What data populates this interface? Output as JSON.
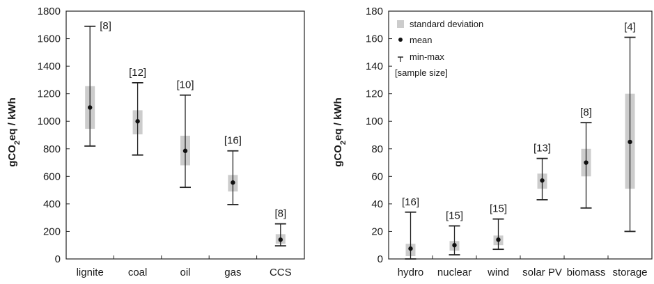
{
  "colors": {
    "sd_box": "#cccccc",
    "whisker": "#222222",
    "mean": "#111111",
    "frame": "#222222"
  },
  "chart_data": [
    {
      "type": "box",
      "ylabel_main": "gCO",
      "ylabel_sub": "2",
      "ylabel_rest": "eq / kWh",
      "ylim": [
        0,
        1800
      ],
      "yticks": [
        0,
        200,
        400,
        600,
        800,
        1000,
        1200,
        1400,
        1600,
        1800
      ],
      "grid": false,
      "categories": [
        "lignite",
        "coal",
        "oil",
        "gas",
        "CCS"
      ],
      "series": [
        {
          "category": "lignite",
          "min": 820,
          "sd_low": 945,
          "mean": 1100,
          "sd_high": 1255,
          "max": 1690,
          "sample_size": "[8]"
        },
        {
          "category": "coal",
          "min": 755,
          "sd_low": 905,
          "mean": 1000,
          "sd_high": 1080,
          "max": 1280,
          "sample_size": "[12]"
        },
        {
          "category": "oil",
          "min": 520,
          "sd_low": 680,
          "mean": 785,
          "sd_high": 895,
          "max": 1190,
          "sample_size": "[10]"
        },
        {
          "category": "gas",
          "min": 395,
          "sd_low": 490,
          "mean": 555,
          "sd_high": 610,
          "max": 785,
          "sample_size": "[16]"
        },
        {
          "category": "CCS",
          "min": 95,
          "sd_low": 110,
          "mean": 140,
          "sd_high": 180,
          "max": 255,
          "sample_size": "[8]"
        }
      ]
    },
    {
      "type": "box",
      "ylabel_main": "gCO",
      "ylabel_sub": "2",
      "ylabel_rest": "eq / kWh",
      "ylim": [
        0,
        180
      ],
      "yticks": [
        0,
        20,
        40,
        60,
        80,
        100,
        120,
        140,
        160,
        180
      ],
      "grid": false,
      "legend_position": "top-left",
      "legend": {
        "sd": "standard deviation",
        "mean": "mean",
        "range": "min-max",
        "sample": "[sample size]"
      },
      "categories": [
        "hydro",
        "nuclear",
        "wind",
        "solar PV",
        "biomass",
        "storage"
      ],
      "series": [
        {
          "category": "hydro",
          "min": 0,
          "sd_low": 2,
          "mean": 7.5,
          "sd_high": 11,
          "max": 34,
          "sample_size": "[16]"
        },
        {
          "category": "nuclear",
          "min": 3,
          "sd_low": 6,
          "mean": 10,
          "sd_high": 13,
          "max": 24,
          "sample_size": "[15]"
        },
        {
          "category": "wind",
          "min": 7,
          "sd_low": 10,
          "mean": 14,
          "sd_high": 17,
          "max": 29,
          "sample_size": "[15]"
        },
        {
          "category": "solar PV",
          "min": 43,
          "sd_low": 51,
          "mean": 57,
          "sd_high": 62,
          "max": 73,
          "sample_size": "[13]"
        },
        {
          "category": "biomass",
          "min": 37,
          "sd_low": 60,
          "mean": 70,
          "sd_high": 80,
          "max": 99,
          "sample_size": "[8]"
        },
        {
          "category": "storage",
          "min": 20,
          "sd_low": 51,
          "mean": 85,
          "sd_high": 120,
          "max": 161,
          "sample_size": "[4]"
        }
      ]
    }
  ]
}
